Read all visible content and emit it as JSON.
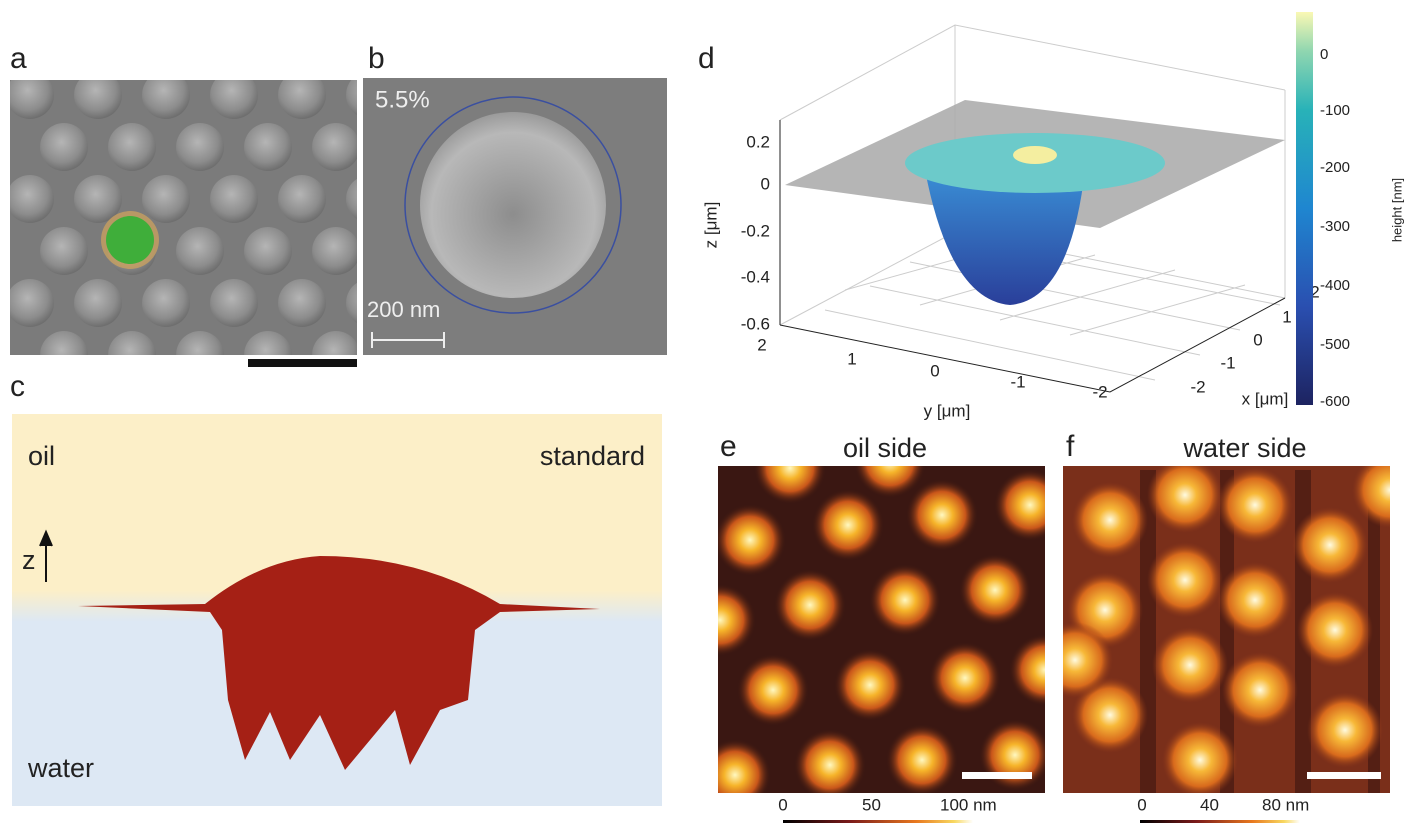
{
  "panels": {
    "a": {
      "label": "a"
    },
    "b": {
      "label": "b",
      "percentage": "5.5%",
      "scale_bar": "200 nm"
    },
    "c": {
      "label": "c",
      "top_left": "oil",
      "top_right": "standard",
      "axis": "z",
      "bottom_left": "water"
    },
    "d": {
      "label": "d",
      "z_label": "z [μm]",
      "z_ticks": [
        "0.2",
        "0",
        "-0.2",
        "-0.4",
        "-0.6"
      ],
      "y_label": "y [μm]",
      "y_ticks": [
        "2",
        "1",
        "0",
        "-1",
        "-2"
      ],
      "x_label": "x [μm]",
      "x_ticks": [
        "2",
        "1",
        "0",
        "-1",
        "-2"
      ],
      "colorbar_label": "height [nm]",
      "colorbar_ticks": [
        "0",
        "-100",
        "-200",
        "-300",
        "-400",
        "-500",
        "-600"
      ]
    },
    "e": {
      "label": "e",
      "title": "oil side",
      "colorbar_ticks": [
        "0",
        "50",
        "100 nm"
      ]
    },
    "f": {
      "label": "f",
      "title": "water side",
      "colorbar_ticks": [
        "0",
        "40",
        "80 nm"
      ]
    }
  }
}
